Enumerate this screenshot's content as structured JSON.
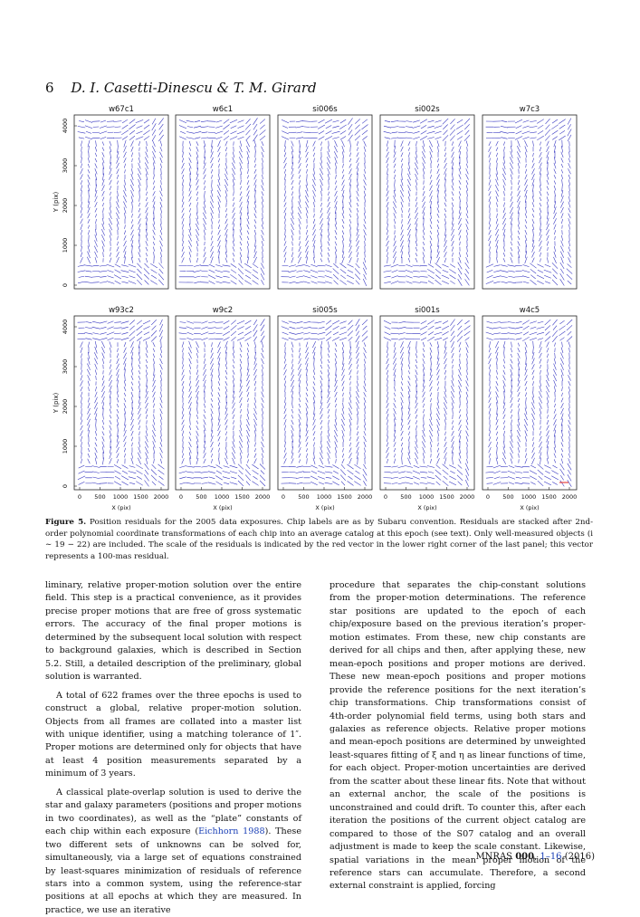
{
  "header": {
    "page_number": "6",
    "authors": "D. I. Casetti-Dinescu & T. M. Girard"
  },
  "figure": {
    "panel_labels": [
      "w67c1",
      "w6c1",
      "si006s",
      "si002s",
      "w7c3",
      "w93c2",
      "w9c2",
      "si005s",
      "si001s",
      "w4c5"
    ],
    "y_axis_label": "Y (pix)",
    "x_axis_label": "X (pix)",
    "y_ticks": [
      "0",
      "1000",
      "2000",
      "3000",
      "4000"
    ],
    "x_ticks": [
      "0",
      "500",
      "1000",
      "1500",
      "2000"
    ],
    "vector_color": "#2b2bbd",
    "scale_vector_color": "#e0201e"
  },
  "caption": {
    "label": "Figure 5.",
    "text": "Position residuals for the 2005 data exposures. Chip labels are as by Subaru convention. Residuals are stacked after 2nd-order polynomial coordinate transformations of each chip into an average catalog at this epoch (see text). Only well-measured objects (i ∼ 19 − 22) are included. The scale of the residuals is indicated by the red vector in the lower right corner of the last panel; this vector represents a 100-mas residual."
  },
  "left_column": {
    "p1": "liminary, relative proper-motion solution over the entire field. This step is a practical convenience, as it provides precise proper motions that are free of gross systematic errors. The accuracy of the final proper motions is determined by the subsequent local solution with respect to background galaxies, which is described in Section 5.2. Still, a detailed description of the preliminary, global solution is warranted.",
    "p2": "A total of 622 frames over the three epochs is used to construct a global, relative proper-motion solution. Objects from all frames are collated into a master list with unique identifier, using a matching tolerance of 1″. Proper motions are determined only for objects that have at least 4 position measurements separated by a minimum of 3 years.",
    "p3_a": "A classical plate-overlap solution is used to derive the star and galaxy parameters (positions and proper motions in two coordinates), as well as the “plate” constants of each chip within each exposure (",
    "p3_cite": "Eichhorn 1988",
    "p3_b": "). These two different sets of unknowns can be solved for, simultaneously, via a large set of equations constrained by least-squares minimization of residuals of reference stars into a common system, using the reference-star positions at all epochs at which they are measured. In practice, we use an iterative"
  },
  "right_column": {
    "p1": "procedure that separates the chip-constant solutions from the proper-motion determinations. The reference star positions are updated to the epoch of each chip/exposure based on the previous iteration’s proper-motion estimates. From these, new chip constants are derived for all chips and then, after applying these, new mean-epoch positions and proper motions are derived. These new mean-epoch positions and proper motions provide the reference positions for the next iteration’s chip transformations. Chip transformations consist of 4th-order polynomial field terms, using both stars and galaxies as reference objects. Relative proper motions and mean-epoch positions are determined by unweighted least-squares fitting of ξ and η as linear functions of time, for each object. Proper-motion uncertainties are derived from the scatter about these linear fits. Note that without an external anchor, the scale of the positions is unconstrained and could drift. To counter this, after each iteration the positions of the current object catalog are compared to those of the S07 catalog and an overall adjustment is made to keep the scale constant. Likewise, spatial variations in the mean proper motion of the reference stars can accumulate. Therefore, a second external constraint is applied, forcing"
  },
  "footer": {
    "journal": "MNRAS",
    "volume": "000",
    "pages": "1–16",
    "year": "(2016)"
  }
}
